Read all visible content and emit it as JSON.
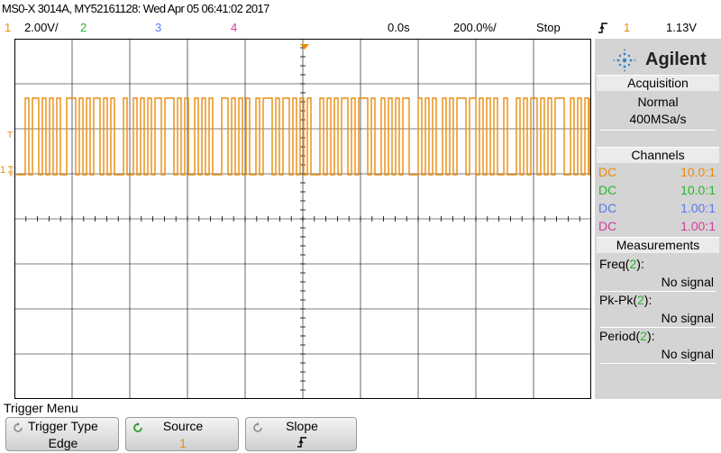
{
  "header": {
    "title": "MS0-X 3014A, MY52161128: Wed Apr 05 06:41:02 2017",
    "ch1_num": "1",
    "ch1_scale": "2.00V/",
    "ch2_num": "2",
    "ch3_num": "3",
    "ch4_num": "4",
    "delay": "0.0s",
    "timebase": "200.0%/",
    "run_state": "Stop",
    "trigger_slope_icon": "rising-edge-icon",
    "trigger_channel": "1",
    "trigger_level": "1.13V"
  },
  "colors": {
    "ch1": "#e98b0c",
    "ch2": "#2bb52b",
    "ch3": "#5a78f0",
    "ch4": "#d23ca0",
    "screen_grid": "#000000"
  },
  "screen": {
    "ch1_marker": "1",
    "trigger_marker": "T",
    "waveform": {
      "channel": 1,
      "high_level_div": 1.7,
      "low_level_div": 0.0,
      "notes": "PWM square wave"
    }
  },
  "side": {
    "brand": "Agilent",
    "acquisition": {
      "header": "Acquisition",
      "mode": "Normal",
      "rate": "400MSa/s"
    },
    "channels": {
      "header": "Channels",
      "rows": [
        {
          "coupling": "DC",
          "probe": "10.0:1"
        },
        {
          "coupling": "DC",
          "probe": "10.0:1"
        },
        {
          "coupling": "DC",
          "probe": "1.00:1"
        },
        {
          "coupling": "DC",
          "probe": "1.00:1"
        }
      ]
    },
    "measurements": {
      "header": "Measurements",
      "items": [
        {
          "name": "Freq(",
          "ch": "2",
          "close": "):",
          "value": "No signal"
        },
        {
          "name": "Pk-Pk(",
          "ch": "2",
          "close": "):",
          "value": "No signal"
        },
        {
          "name": "Period(",
          "ch": "2",
          "close": "):",
          "value": "No signal"
        }
      ]
    }
  },
  "menu": {
    "title": "Trigger Menu",
    "softkeys": [
      {
        "label": "Trigger Type",
        "value": "Edge"
      },
      {
        "label": "Source",
        "value": "1"
      },
      {
        "label": "Slope",
        "value": "rising-edge"
      }
    ]
  }
}
